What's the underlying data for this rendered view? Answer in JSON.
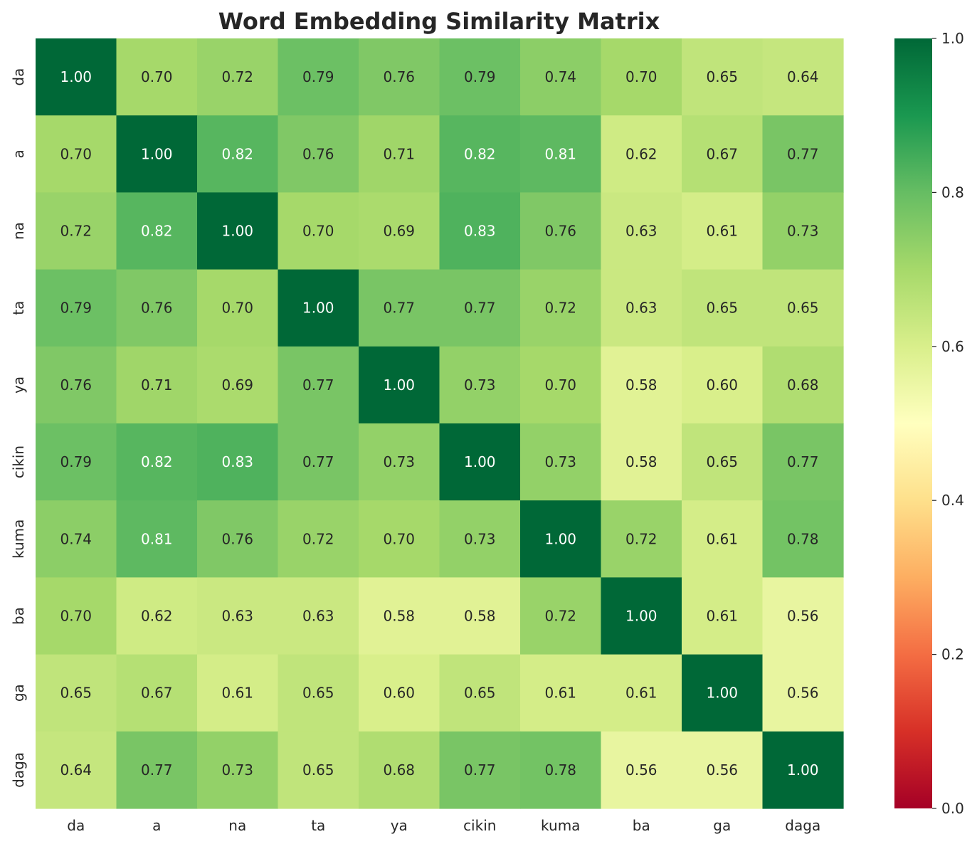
{
  "chart_data": {
    "type": "heatmap",
    "title": "Word Embedding Similarity Matrix",
    "xlabel": "",
    "ylabel": "",
    "x_categories": [
      "da",
      "a",
      "na",
      "ta",
      "ya",
      "cikin",
      "kuma",
      "ba",
      "ga",
      "daga"
    ],
    "y_categories": [
      "da",
      "a",
      "na",
      "ta",
      "ya",
      "cikin",
      "kuma",
      "ba",
      "ga",
      "daga"
    ],
    "values": [
      [
        1.0,
        0.7,
        0.72,
        0.79,
        0.76,
        0.79,
        0.74,
        0.7,
        0.65,
        0.64
      ],
      [
        0.7,
        1.0,
        0.82,
        0.76,
        0.71,
        0.82,
        0.81,
        0.62,
        0.67,
        0.77
      ],
      [
        0.72,
        0.82,
        1.0,
        0.7,
        0.69,
        0.83,
        0.76,
        0.63,
        0.61,
        0.73
      ],
      [
        0.79,
        0.76,
        0.7,
        1.0,
        0.77,
        0.77,
        0.72,
        0.63,
        0.65,
        0.65
      ],
      [
        0.76,
        0.71,
        0.69,
        0.77,
        1.0,
        0.73,
        0.7,
        0.58,
        0.6,
        0.68
      ],
      [
        0.79,
        0.82,
        0.83,
        0.77,
        0.73,
        1.0,
        0.73,
        0.58,
        0.65,
        0.77
      ],
      [
        0.74,
        0.81,
        0.76,
        0.72,
        0.7,
        0.73,
        1.0,
        0.72,
        0.61,
        0.78
      ],
      [
        0.7,
        0.62,
        0.63,
        0.63,
        0.58,
        0.58,
        0.72,
        1.0,
        0.61,
        0.56
      ],
      [
        0.65,
        0.67,
        0.61,
        0.65,
        0.6,
        0.65,
        0.61,
        0.61,
        1.0,
        0.56
      ],
      [
        0.64,
        0.77,
        0.73,
        0.65,
        0.68,
        0.77,
        0.78,
        0.56,
        0.56,
        1.0
      ]
    ],
    "value_format": "2 decimals",
    "colorbar": {
      "colormap": "RdYlGn",
      "range": [
        0.0,
        1.0
      ],
      "ticks": [
        "0.0",
        "0.2",
        "0.4",
        "0.6",
        "0.8",
        "1.0"
      ],
      "position": "right"
    },
    "colors": {
      "scale": [
        "#a50026",
        "#d73027",
        "#f46d43",
        "#fdae61",
        "#fee08b",
        "#ffffbf",
        "#d9ef8b",
        "#a6d96a",
        "#66bd63",
        "#1a9850",
        "#006837"
      ],
      "text_dark": "#262626",
      "text_light": "#ffffff"
    },
    "grid": false,
    "legend": "none"
  }
}
